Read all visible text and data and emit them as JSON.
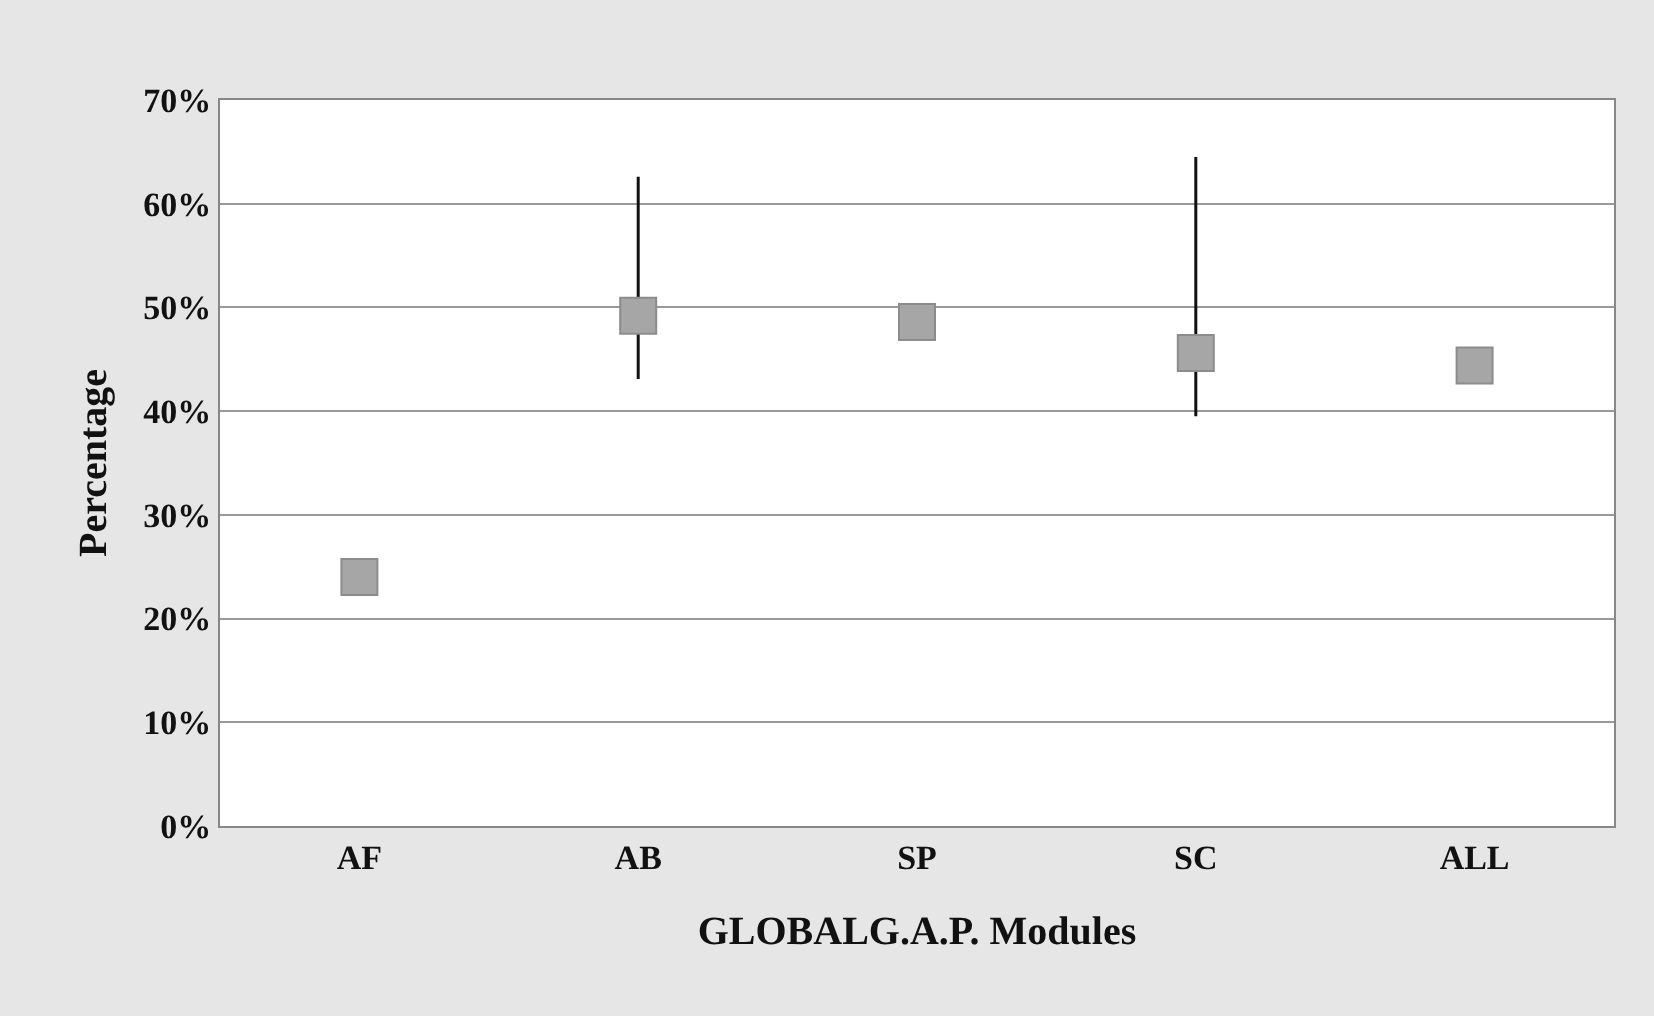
{
  "chart_data": {
    "type": "scatter",
    "xlabel": "GLOBALG.A.P. Modules",
    "ylabel": "Percentage",
    "categories": [
      "AF",
      "AB",
      "SP",
      "SC",
      "ALL"
    ],
    "values": [
      24.0,
      49.2,
      48.6,
      45.6,
      44.4
    ],
    "errors": [
      null,
      [
        43.1,
        62.6
      ],
      null,
      [
        39.5,
        64.5
      ],
      null
    ],
    "color": "#a6a6a6",
    "marker": "square",
    "grid": "y",
    "legend": false,
    "ylim": [
      0,
      70
    ],
    "yticks": [
      {
        "value": 0,
        "label": "0%"
      },
      {
        "value": 10,
        "label": "10%"
      },
      {
        "value": 20,
        "label": "20%"
      },
      {
        "value": 30,
        "label": "30%"
      },
      {
        "value": 40,
        "label": "40%"
      },
      {
        "value": 50,
        "label": "50%"
      },
      {
        "value": 60,
        "label": "60%"
      },
      {
        "value": 70,
        "label": "70%"
      }
    ]
  }
}
